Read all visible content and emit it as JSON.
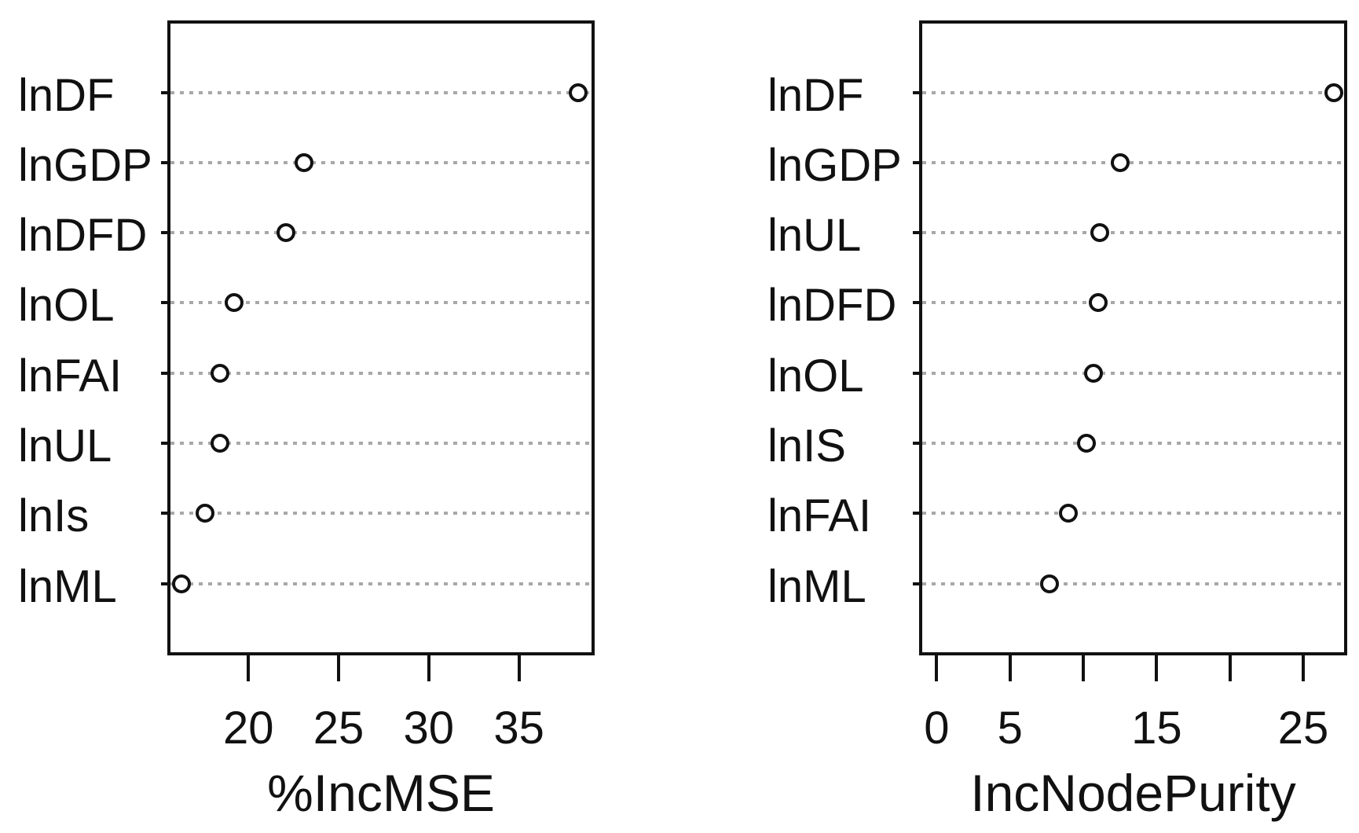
{
  "figure": {
    "background_color": "#ffffff",
    "foreground_color": "#111111",
    "gridline_color": "#a8a8a8",
    "description": "Random-forest variable importance dot charts, two panels"
  },
  "chart_data": [
    {
      "type": "scatter",
      "variant": "dotchart",
      "title": "",
      "xlabel": "%IncMSE",
      "ylabel": "",
      "categories_top_to_bottom": [
        "lnDF",
        "lnGDP",
        "lnDFD",
        "lnOL",
        "lnFAI",
        "lnUL",
        "lnIs",
        "lnML"
      ],
      "values": [
        38.3,
        23.1,
        22.1,
        19.2,
        18.4,
        18.4,
        17.6,
        16.3
      ],
      "xlim": [
        15.5,
        39.2
      ],
      "xticks": [
        20,
        25,
        30,
        35
      ],
      "xtick_labels": [
        "20",
        "25",
        "30",
        "35"
      ],
      "grid": "horizontal dotted",
      "legend": "none",
      "marker": "open-circle"
    },
    {
      "type": "scatter",
      "variant": "dotchart",
      "title": "",
      "xlabel": "IncNodePurity",
      "ylabel": "",
      "categories_top_to_bottom": [
        "lnDF",
        "lnGDP",
        "lnUL",
        "lnDFD",
        "lnOL",
        "lnIS",
        "lnFAI",
        "lnML"
      ],
      "values": [
        27.1,
        12.5,
        11.1,
        11.0,
        10.7,
        10.2,
        9.0,
        7.7
      ],
      "xlim": [
        -1.2,
        28.0
      ],
      "xticks": [
        0,
        5,
        10,
        15,
        20,
        25
      ],
      "xtick_labels": [
        "0",
        "5",
        "",
        "15",
        "",
        "25"
      ],
      "grid": "horizontal dotted",
      "legend": "none",
      "marker": "open-circle"
    }
  ]
}
